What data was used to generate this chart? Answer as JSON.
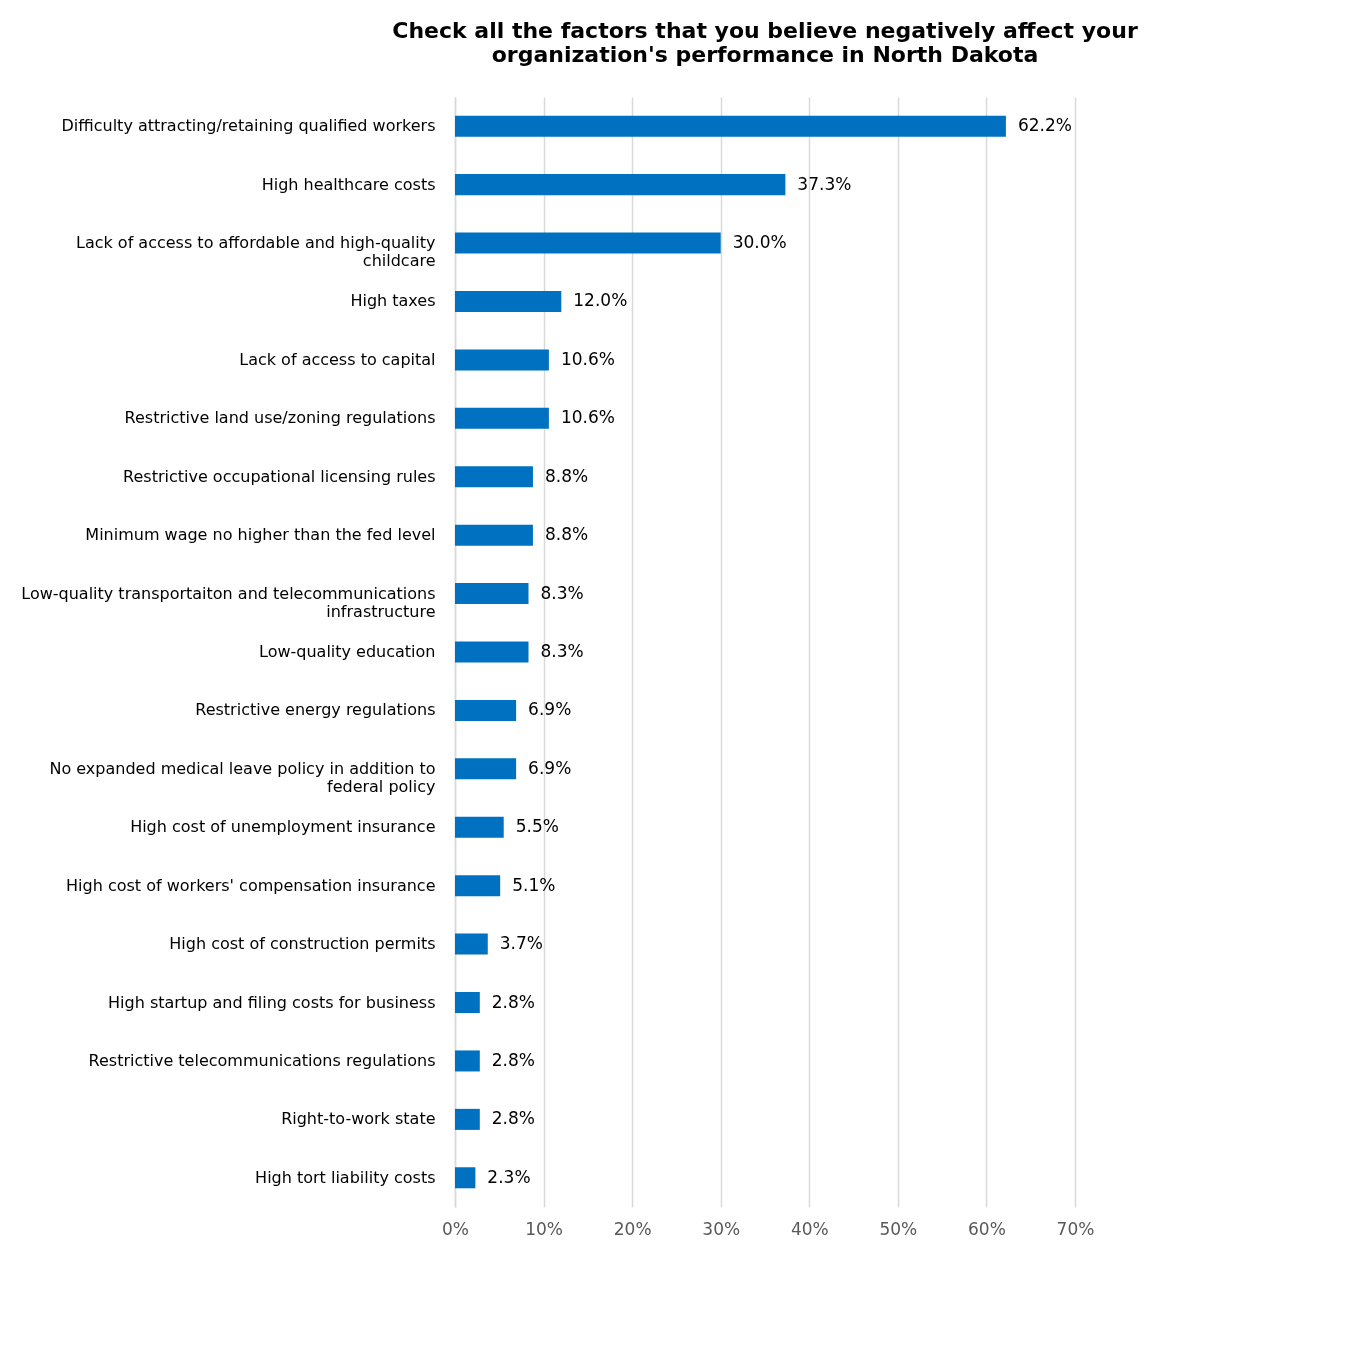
{
  "chart_data": {
    "type": "bar",
    "orientation": "horizontal",
    "title": "Check all the factors that you believe negatively affect your organization's performance in North Dakota",
    "categories": [
      "Difficulty attracting/retaining qualified workers",
      "High healthcare costs",
      "Lack of access to affordable and high-quality childcare",
      "High taxes",
      "Lack of access to capital",
      "Restrictive land use/zoning regulations",
      "Restrictive occupational licensing rules",
      "Minimum wage no higher than the fed level",
      "Low-quality transportaiton and telecommunications infrastructure",
      "Low-quality education",
      "Restrictive energy regulations",
      "No expanded medical leave policy in addition to federal policy",
      "High cost of unemployment insurance",
      "High cost of workers' compensation insurance",
      "High cost of construction permits",
      "High startup and filing costs for business",
      "Restrictive telecommunications regulations",
      "Right-to-work state",
      "High tort liability costs"
    ],
    "values": [
      62.2,
      37.3,
      30.0,
      12.0,
      10.6,
      10.6,
      8.8,
      8.8,
      8.3,
      8.3,
      6.9,
      6.9,
      5.5,
      5.1,
      3.7,
      2.8,
      2.8,
      2.8,
      2.3
    ],
    "value_labels": [
      "62.2%",
      "37.3%",
      "30.0%",
      "12.0%",
      "10.6%",
      "10.6%",
      "8.8%",
      "8.8%",
      "8.3%",
      "8.3%",
      "6.9%",
      "6.9%",
      "5.5%",
      "5.1%",
      "3.7%",
      "2.8%",
      "2.8%",
      "2.8%",
      "2.3%"
    ],
    "color": "#0070c0",
    "xlim": [
      0,
      70
    ],
    "xticks": [
      {
        "value": 0,
        "label": "0%"
      },
      {
        "value": 10,
        "label": "10%"
      },
      {
        "value": 20,
        "label": "20%"
      },
      {
        "value": 30,
        "label": "30%"
      },
      {
        "value": 40,
        "label": "40%"
      },
      {
        "value": 50,
        "label": "50%"
      },
      {
        "value": 60,
        "label": "60%"
      },
      {
        "value": 70,
        "label": "70%"
      }
    ],
    "grid": "x"
  }
}
